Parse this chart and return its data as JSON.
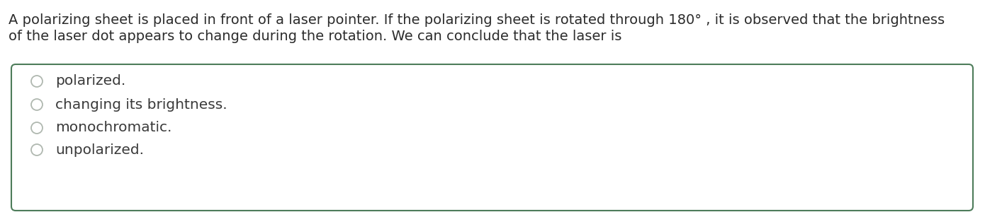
{
  "question_line1": "A polarizing sheet is placed in front of a laser pointer. If the polarizing sheet is rotated through 180° , it is observed that the brightness",
  "question_line2": "of the laser dot appears to change during the rotation. We can conclude that the laser is",
  "options": [
    "polarized.",
    "changing its brightness.",
    "monochromatic.",
    "unpolarized."
  ],
  "background_color": "#ffffff",
  "box_border_color": "#4d7c5a",
  "text_color": "#2c2c2c",
  "option_text_color": "#3a3a3a",
  "circle_edge_color": "#b0b8b0",
  "question_fontsize": 14.0,
  "option_fontsize": 14.5,
  "fig_width": 13.9,
  "fig_height": 3.0,
  "dpi": 100
}
